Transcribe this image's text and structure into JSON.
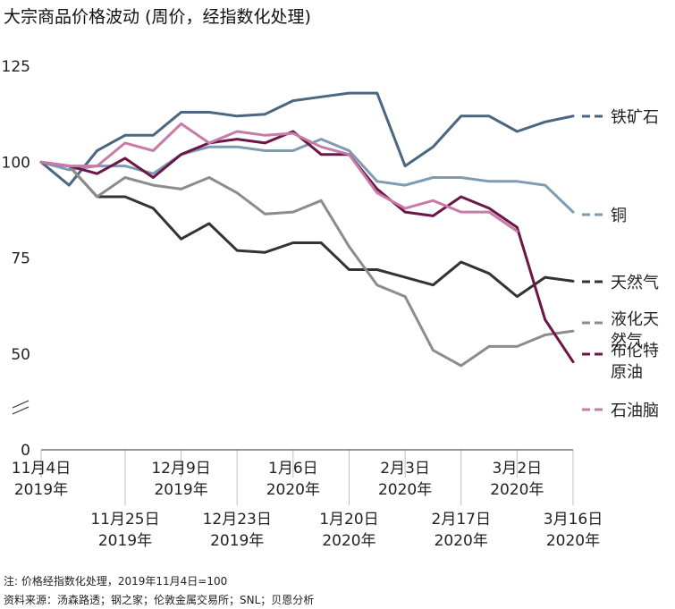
{
  "title": "大宗商品价格波动 (周价，经指数化处理)",
  "note": "注: 价格经指数化处理，2019年11月4日=100",
  "source": "资料来源：汤森路透；钢之家；伦敦金属交易所；SNL；贝恩分析",
  "chart_data": {
    "type": "line",
    "title": "大宗商品价格波动 (周价，经指数化处理)",
    "x": [
      "2019-11-04",
      "2019-11-11",
      "2019-11-18",
      "2019-11-25",
      "2019-12-02",
      "2019-12-09",
      "2019-12-16",
      "2019-12-23",
      "2019-12-30",
      "2020-01-06",
      "2020-01-13",
      "2020-01-20",
      "2020-01-27",
      "2020-02-03",
      "2020-02-10",
      "2020-02-17",
      "2020-02-24",
      "2020-03-02",
      "2020-03-09",
      "2020-03-16"
    ],
    "y_ticks": [
      "0",
      "50",
      "75",
      "100",
      "125"
    ],
    "y_break": true,
    "ylim": [
      0,
      125
    ],
    "x_ticks_row1": [
      {
        "x": "2019-11-04",
        "lines": [
          "11月4日",
          "2019年"
        ]
      },
      {
        "x": "2019-12-09",
        "lines": [
          "12月9日",
          "2019年"
        ]
      },
      {
        "x": "2020-01-06",
        "lines": [
          "1月6日",
          "2020年"
        ]
      },
      {
        "x": "2020-02-03",
        "lines": [
          "2月3日",
          "2020年"
        ]
      },
      {
        "x": "2020-03-02",
        "lines": [
          "3月2日",
          "2020年"
        ]
      }
    ],
    "x_ticks_row2": [
      {
        "x": "2019-11-25",
        "lines": [
          "11月25日",
          "2019年"
        ]
      },
      {
        "x": "2019-12-23",
        "lines": [
          "12月23日",
          "2019年"
        ]
      },
      {
        "x": "2020-01-20",
        "lines": [
          "1月20日",
          "2020年"
        ]
      },
      {
        "x": "2020-02-17",
        "lines": [
          "2月17日",
          "2020年"
        ]
      },
      {
        "x": "2020-03-16",
        "lines": [
          "3月16日",
          "2020年"
        ]
      }
    ],
    "series": [
      {
        "name": "铁矿石",
        "legend_lines": [
          "铁矿石"
        ],
        "color": "#4a6680",
        "values": [
          100,
          94,
          103,
          107,
          107,
          113,
          113,
          112,
          112.5,
          116,
          117,
          118,
          118,
          99,
          104,
          112,
          112,
          108,
          110.5,
          112
        ]
      },
      {
        "name": "铜",
        "legend_lines": [
          "铜"
        ],
        "color": "#7f9bb4",
        "values": [
          100,
          98,
          99,
          99,
          97,
          102,
          104,
          104,
          103,
          103,
          106,
          103,
          95,
          94,
          96,
          96,
          95,
          95,
          94,
          87
        ]
      },
      {
        "name": "天然气",
        "legend_lines": [
          "天然气"
        ],
        "color": "#333333",
        "values": [
          100,
          99,
          91,
          91,
          88,
          80,
          84,
          77,
          76.5,
          79,
          79,
          72,
          72,
          70,
          68,
          74,
          71,
          65,
          70,
          69
        ]
      },
      {
        "name": "液化天然气",
        "legend_lines": [
          "液化天",
          "然气"
        ],
        "color": "#8c8c8c",
        "values": [
          100,
          99,
          91,
          96,
          94,
          93,
          96,
          92,
          86.5,
          87,
          90,
          78,
          68,
          65,
          51,
          47,
          52,
          52,
          55,
          56
        ]
      },
      {
        "name": "布伦特原油",
        "legend_lines": [
          "布伦特",
          "原油"
        ],
        "color": "#6b1646",
        "values": [
          100,
          99,
          97,
          101,
          96,
          102,
          105,
          106,
          105,
          108,
          102,
          102,
          93,
          87,
          86,
          91,
          88,
          83,
          59,
          48
        ]
      },
      {
        "name": "石油脑",
        "legend_lines": [
          "石油脑"
        ],
        "color": "#c77ba6",
        "values": [
          100,
          99,
          99,
          105,
          103,
          110,
          105,
          108,
          107,
          107.5,
          104,
          102,
          92,
          88,
          90,
          87,
          87,
          82,
          null,
          null
        ]
      }
    ]
  }
}
